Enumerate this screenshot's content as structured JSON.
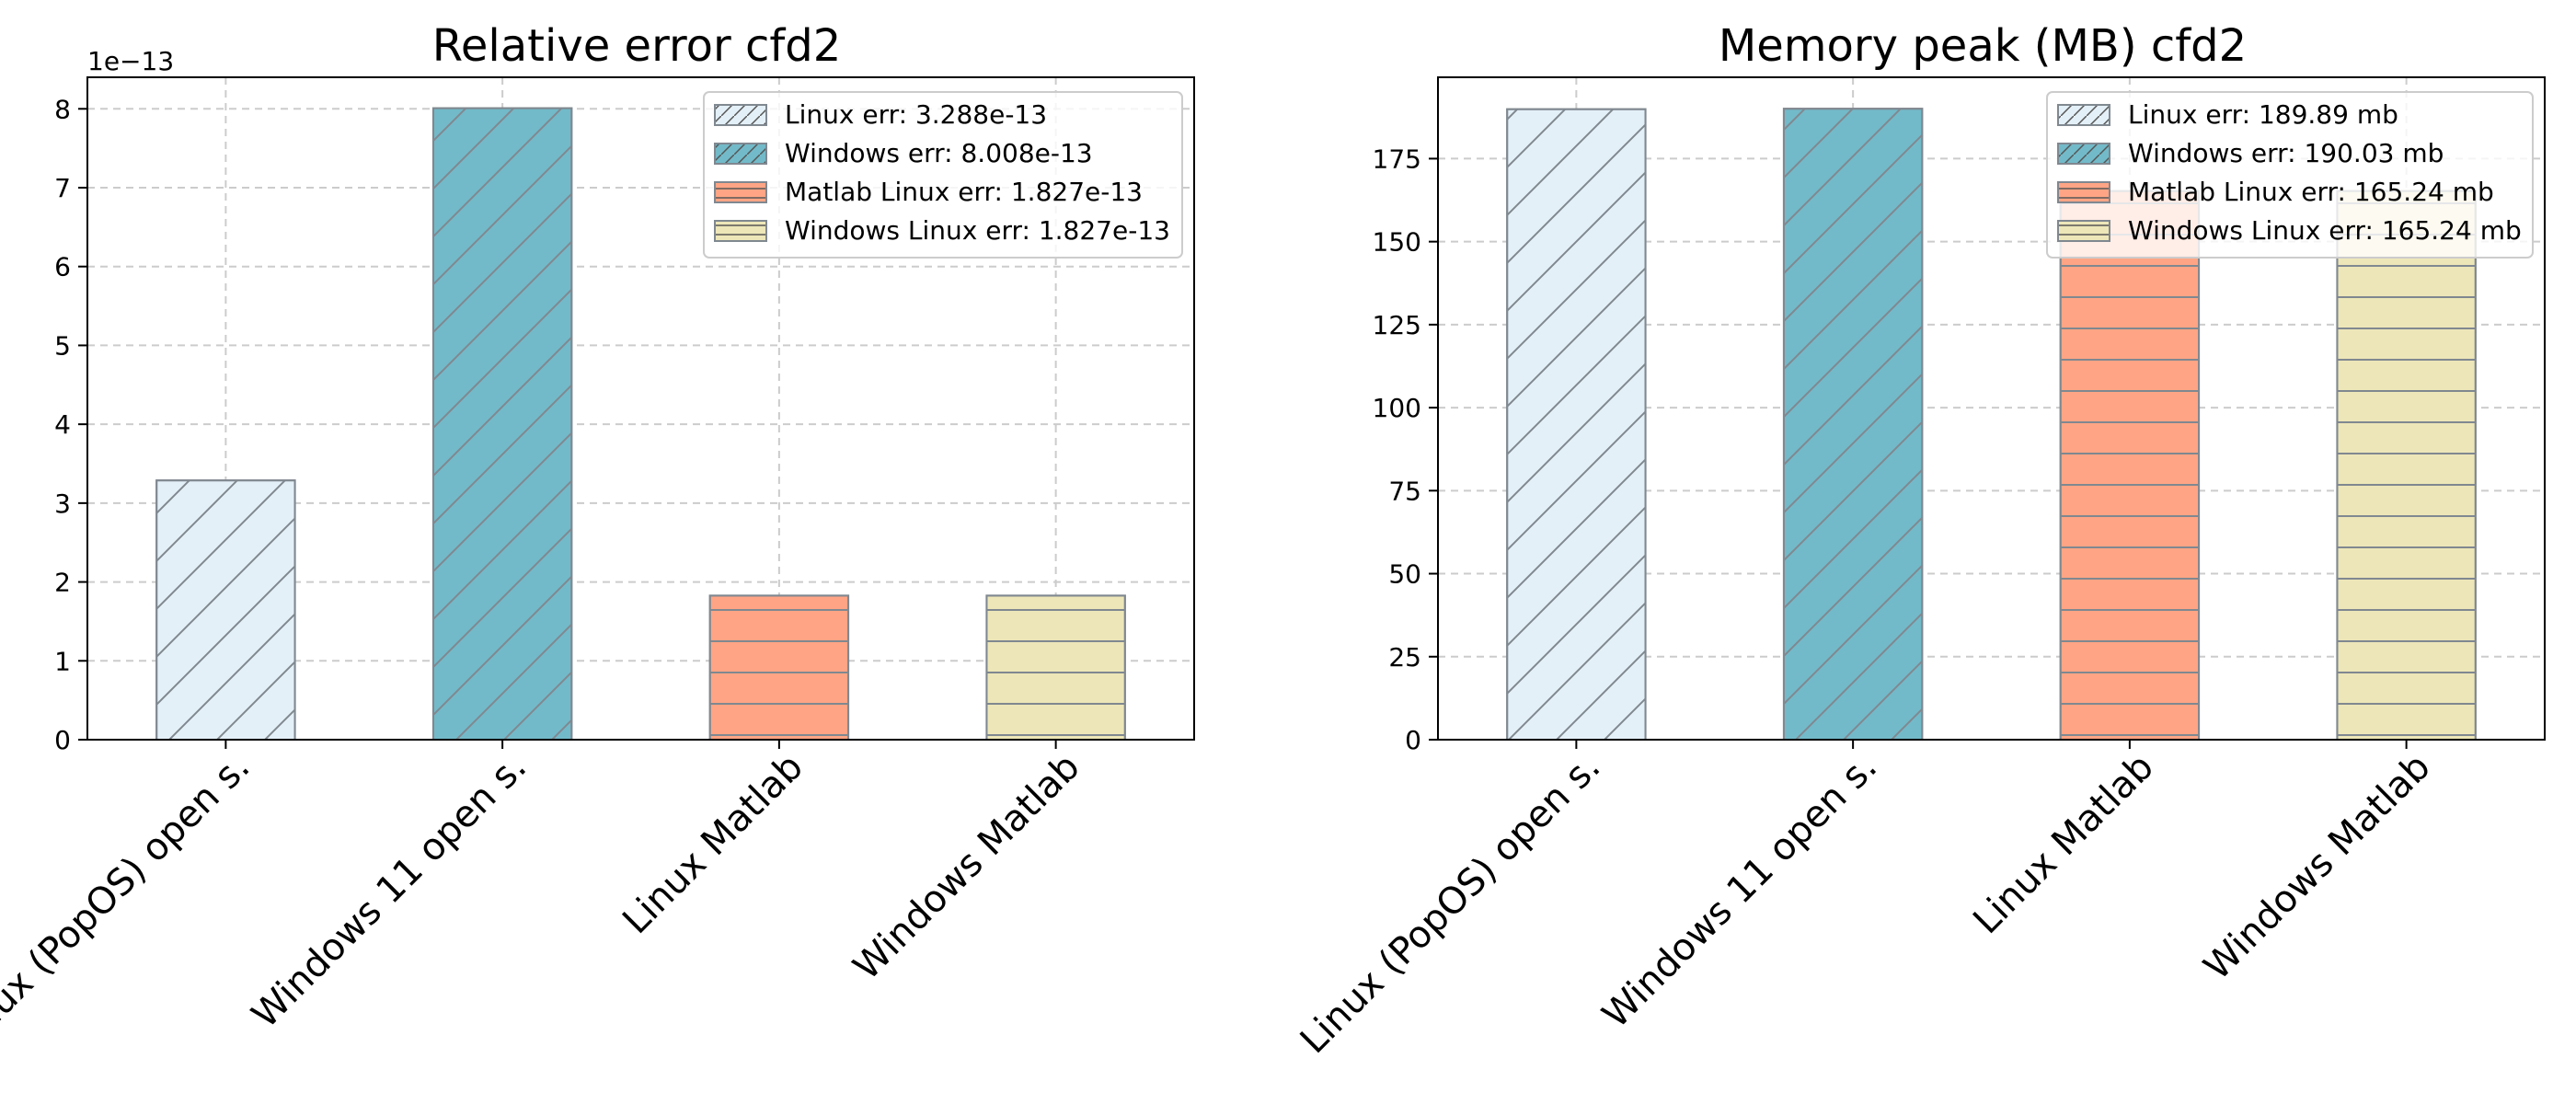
{
  "colors": {
    "linux_open": "#e4f0f7",
    "windows_open": "#72bac9",
    "linux_matlab": "#ffa585",
    "windows_matlab": "#ede6b8",
    "grid": "#cccccc",
    "hatch": "#808890"
  },
  "chart_data": [
    {
      "type": "bar",
      "title": "Relative error cfd2",
      "xlabel": "",
      "ylabel": "",
      "y_offset_label": "1e−13",
      "categories": [
        "Linux (PopOS) open s.",
        "Windows 11 open s.",
        "Linux Matlab",
        "Windows Matlab"
      ],
      "values": [
        3.288e-13,
        8.008e-13,
        1.827e-13,
        1.827e-13
      ],
      "ylim": [
        0,
        8.4e-13
      ],
      "yticks": [
        0,
        1e-13,
        2e-13,
        3e-13,
        4e-13,
        5e-13,
        6e-13,
        7e-13,
        8e-13
      ],
      "ytick_labels": [
        "0",
        "1",
        "2",
        "3",
        "4",
        "5",
        "6",
        "7",
        "8"
      ],
      "hatches": [
        "/",
        "/",
        "-",
        "-"
      ],
      "grid": true,
      "legend_position": "top-right",
      "legend": [
        "Linux err: 3.288e-13",
        "Windows err: 8.008e-13",
        "Matlab Linux err: 1.827e-13",
        "Windows Linux err: 1.827e-13"
      ]
    },
    {
      "type": "bar",
      "title": "Memory peak (MB) cfd2",
      "xlabel": "",
      "ylabel": "",
      "categories": [
        "Linux (PopOS) open s.",
        "Windows 11 open s.",
        "Linux Matlab",
        "Windows Matlab"
      ],
      "values": [
        189.89,
        190.03,
        165.24,
        165.24
      ],
      "ylim": [
        0,
        199.5
      ],
      "yticks": [
        0,
        25,
        50,
        75,
        100,
        125,
        150,
        175
      ],
      "ytick_labels": [
        "0",
        "25",
        "50",
        "75",
        "100",
        "125",
        "150",
        "175"
      ],
      "hatches": [
        "/",
        "/",
        "-",
        "-"
      ],
      "grid": true,
      "legend_position": "top-right",
      "legend": [
        "Linux err: 189.89 mb",
        "Windows err: 190.03 mb",
        "Matlab Linux err: 165.24 mb",
        "Windows Linux err: 165.24 mb"
      ]
    }
  ]
}
